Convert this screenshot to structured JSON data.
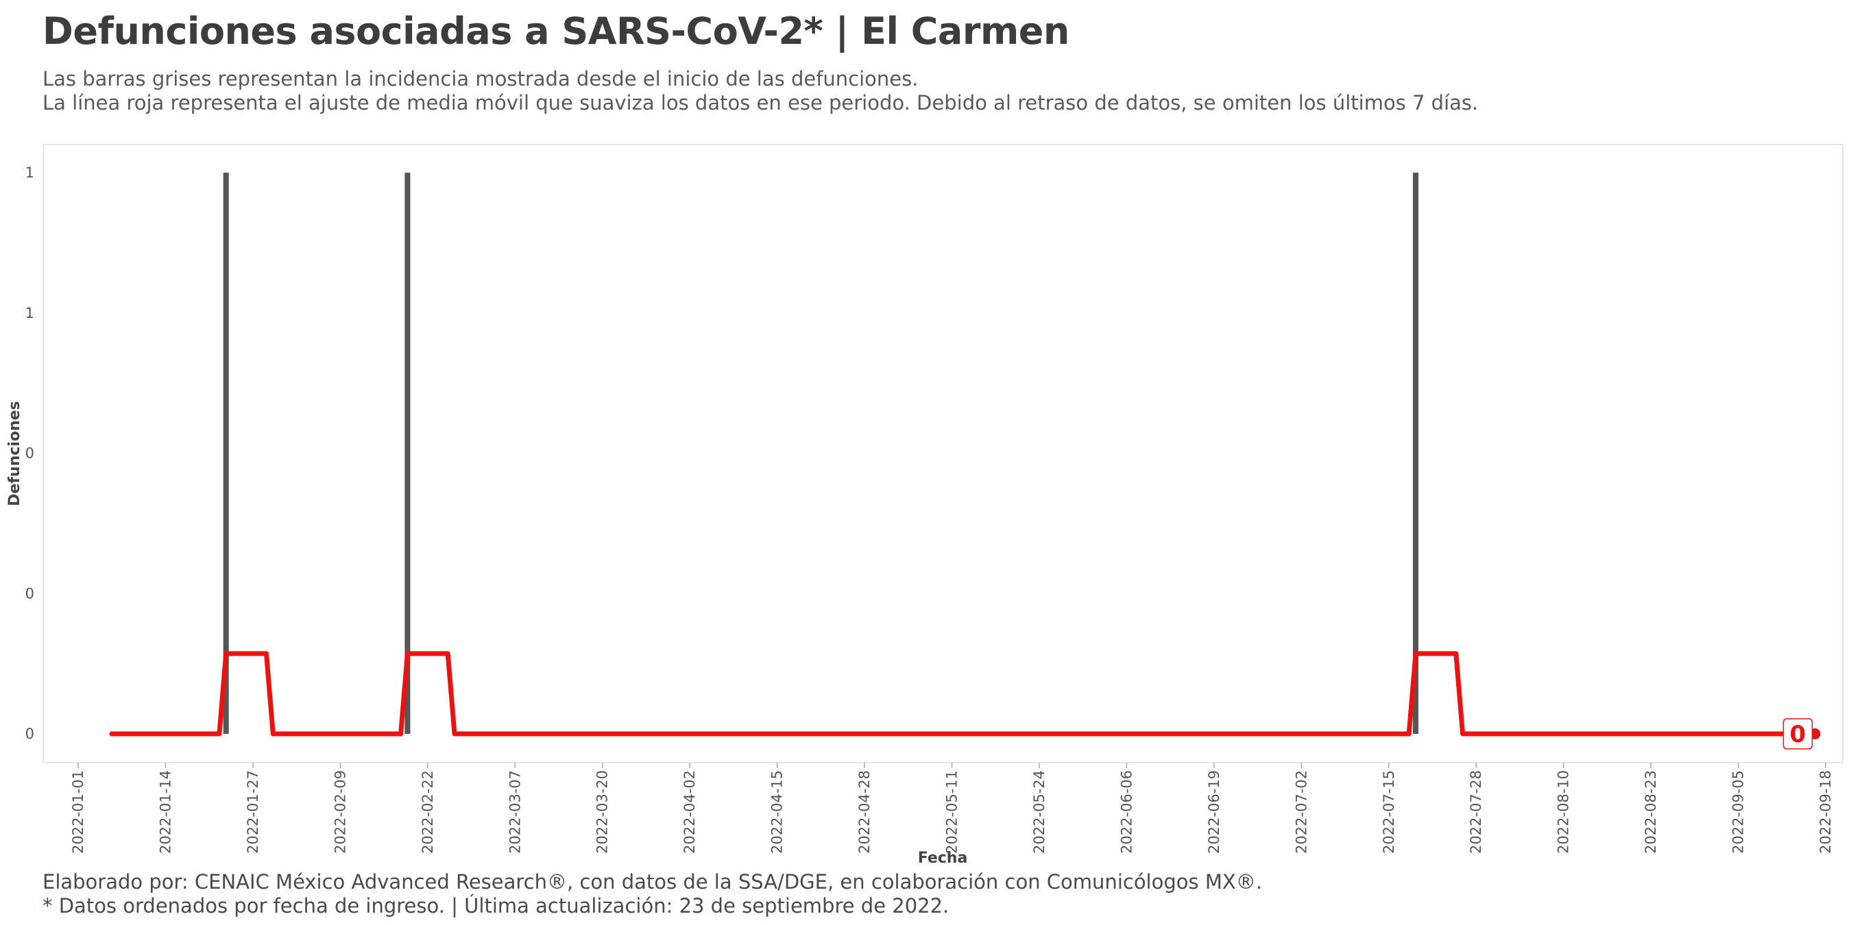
{
  "title": "Defunciones asociadas a SARS-CoV-2* | El Carmen",
  "subtitle": [
    "Las barras grises representan la incidencia mostrada desde el inicio de las defunciones.",
    "La línea roja representa el ajuste de media móvil que suaviza los datos en ese periodo. Debido al retraso de datos, se omiten los últimos 7 días."
  ],
  "caption": [
    "Elaborado por: CENAIC México Advanced Research®, con datos de la SSA/DGE, en colaboración con Comunicólogos MX®.",
    "* Datos ordenados por fecha de ingreso. | Última actualización: 23 de septiembre de 2022."
  ],
  "colors": {
    "bars": "#555555",
    "line": "#ee1111",
    "grid": "#eeeeee",
    "panel_border": "#dddddd"
  },
  "chart_data": {
    "type": "bar",
    "xlabel": "Fecha",
    "ylabel": "Defunciones",
    "x_range": [
      "2022-01-01",
      "2022-09-18"
    ],
    "x_ticks": [
      "2022-01-01",
      "2022-01-14",
      "2022-01-27",
      "2022-02-09",
      "2022-02-22",
      "2022-03-07",
      "2022-03-20",
      "2022-04-02",
      "2022-04-15",
      "2022-04-28",
      "2022-05-11",
      "2022-05-24",
      "2022-06-06",
      "2022-06-19",
      "2022-07-02",
      "2022-07-15",
      "2022-07-28",
      "2022-08-10",
      "2022-08-23",
      "2022-09-05",
      "2022-09-18"
    ],
    "y_ticks": [
      0,
      0.25,
      0.5,
      0.75,
      1
    ],
    "y_tick_labels": [
      "0",
      "0",
      "0",
      "1",
      "1"
    ],
    "ylim": [
      0,
      1
    ],
    "grid": false,
    "bars": [
      {
        "date": "2022-01-23",
        "value": 1
      },
      {
        "date": "2022-02-19",
        "value": 1
      },
      {
        "date": "2022-07-19",
        "value": 1
      }
    ],
    "moving_average": {
      "window_days": 7,
      "points": [
        {
          "date": "2022-01-06",
          "value": 0
        },
        {
          "date": "2022-01-22",
          "value": 0
        },
        {
          "date": "2022-01-23",
          "value": 0.143
        },
        {
          "date": "2022-01-29",
          "value": 0.143
        },
        {
          "date": "2022-01-30",
          "value": 0
        },
        {
          "date": "2022-02-18",
          "value": 0
        },
        {
          "date": "2022-02-19",
          "value": 0.143
        },
        {
          "date": "2022-02-25",
          "value": 0.143
        },
        {
          "date": "2022-02-26",
          "value": 0
        },
        {
          "date": "2022-07-18",
          "value": 0
        },
        {
          "date": "2022-07-19",
          "value": 0.143
        },
        {
          "date": "2022-07-25",
          "value": 0.143
        },
        {
          "date": "2022-07-26",
          "value": 0
        },
        {
          "date": "2022-09-16",
          "value": 0
        }
      ]
    },
    "end_label": "0"
  }
}
